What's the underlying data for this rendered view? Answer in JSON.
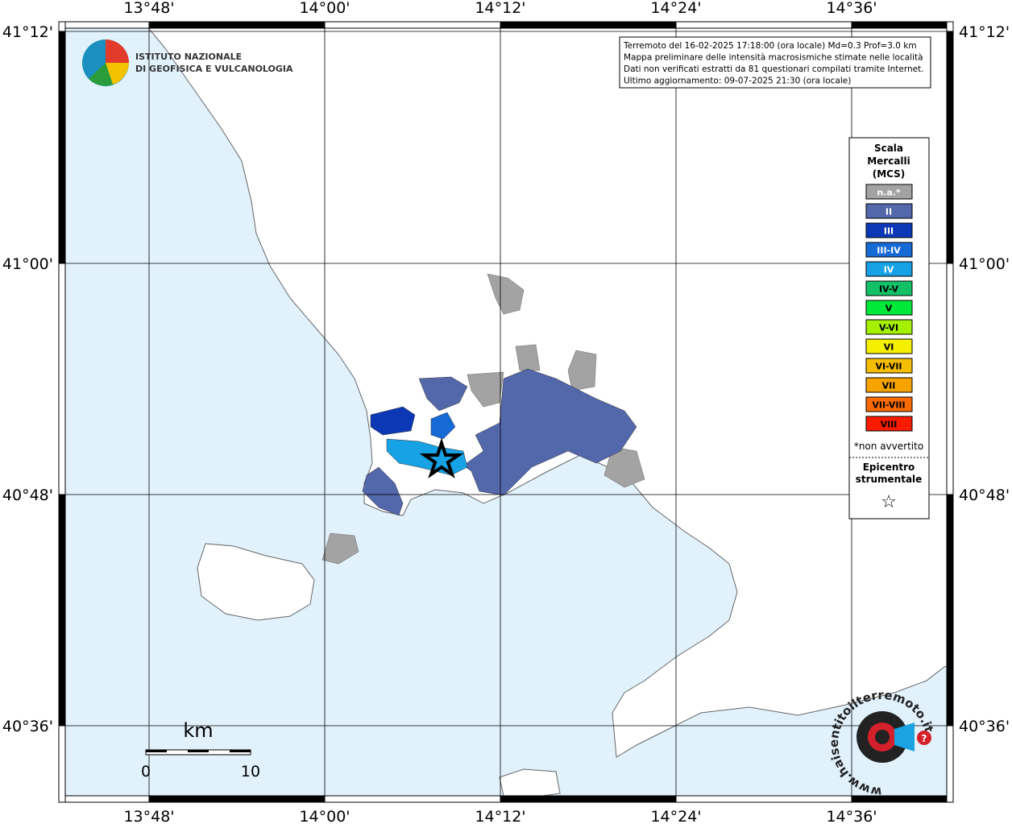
{
  "logo": {
    "line1": "ISTITUTO NAZIONALE",
    "line2": "DI GEOFISICA E VULCANOLOGIA"
  },
  "info": [
    "Terremoto del 16-02-2025 17:18:00 (ora locale) Md=0.3 Prof=3.0 km",
    "Mappa preliminare delle intensità macrosismiche stimate nelle località",
    "Dati non verificati estratti da 81 questionari compilati tramite Internet.",
    "Ultimo aggiornamento: 09-07-2025 21:30 (ora locale)"
  ],
  "longitude_labels": [
    "13°48'",
    "14°00'",
    "14°12'",
    "14°24'",
    "14°36'"
  ],
  "latitude_labels": [
    "41°12'",
    "41°00'",
    "40°48'",
    "40°36'"
  ],
  "legend": {
    "title": [
      "Scala",
      "Mercalli",
      "(MCS)"
    ],
    "items": [
      {
        "label": "n.a.*",
        "color": "#a3a3a3",
        "text_color": "#ffffff"
      },
      {
        "label": "II",
        "color": "#5367ab",
        "text_color": "#ffffff"
      },
      {
        "label": "III",
        "color": "#0c38b6",
        "text_color": "#ffffff"
      },
      {
        "label": "III-IV",
        "color": "#156ad6",
        "text_color": "#ffffff"
      },
      {
        "label": "IV",
        "color": "#16a2e4",
        "text_color": "#ffffff"
      },
      {
        "label": "IV-V",
        "color": "#12c066",
        "text_color": "#000000"
      },
      {
        "label": "V",
        "color": "#00e83a",
        "text_color": "#000000"
      },
      {
        "label": "V-VI",
        "color": "#a4f000",
        "text_color": "#000000"
      },
      {
        "label": "VI",
        "color": "#f4f000",
        "text_color": "#000000"
      },
      {
        "label": "VI-VII",
        "color": "#f4bd00",
        "text_color": "#000000"
      },
      {
        "label": "VII",
        "color": "#f7a400",
        "text_color": "#000000"
      },
      {
        "label": "VII-VIII",
        "color": "#fa6a00",
        "text_color": "#000000"
      },
      {
        "label": "VIII",
        "color": "#f81b00",
        "text_color": "#000000"
      }
    ],
    "note": "*non avvertito",
    "epicenter": [
      "Epicentro",
      "strumentale"
    ],
    "symbol": "☆"
  },
  "scale_bar": {
    "unit": "km",
    "labels": [
      "0",
      "10"
    ]
  },
  "hsit_logo": {
    "text": "www.haisentitoilterremoto.it",
    "mark": "?"
  }
}
